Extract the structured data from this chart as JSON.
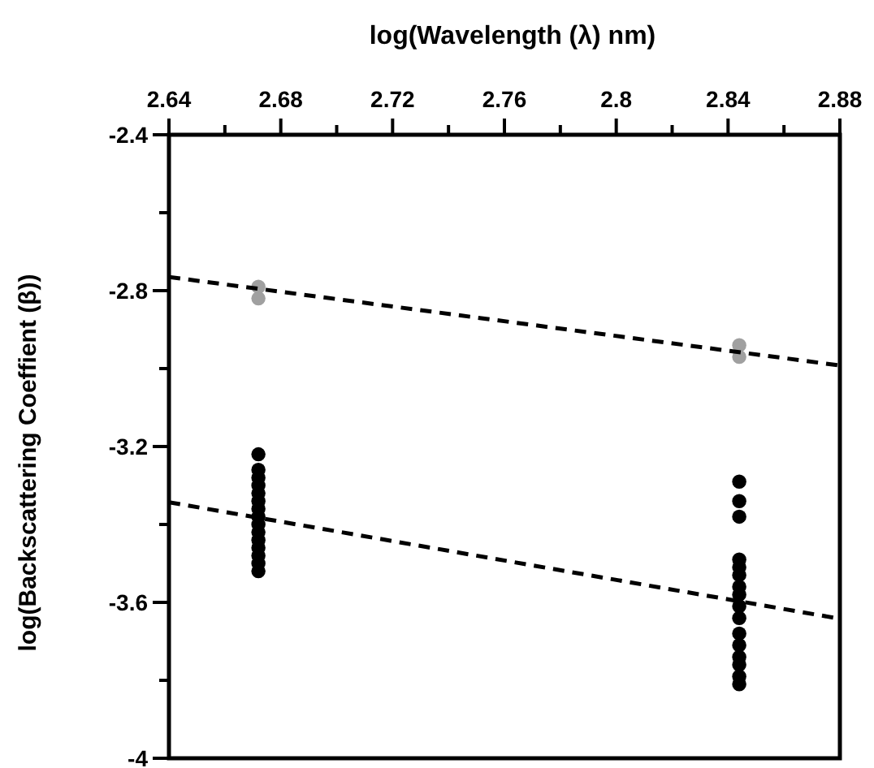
{
  "chart_data": {
    "type": "scatter",
    "xlabel": "log(Wavelength (λ) nm)",
    "ylabel": "log(Backscattering Coeffient (β))",
    "xlim": [
      2.64,
      2.88
    ],
    "xticks": [
      2.64,
      {
        "value": 2.66,
        "label": null
      },
      2.68,
      {
        "value": 2.7,
        "label": null
      },
      2.72,
      {
        "value": 2.74,
        "label": null
      },
      2.76,
      {
        "value": 2.78,
        "label": null
      },
      {
        "value": 2.8,
        "label": "2.8"
      },
      {
        "value": 2.82,
        "label": null
      },
      2.84,
      {
        "value": 2.86,
        "label": null
      },
      2.88
    ],
    "ylim": [
      -4,
      -2.4
    ],
    "yticks": [
      {
        "value": -4,
        "label": "-4"
      },
      {
        "value": -3.8,
        "label": null
      },
      -3.6,
      {
        "value": -3.4,
        "label": null
      },
      -3.2,
      {
        "value": -3,
        "label": null
      },
      -2.8,
      {
        "value": -2.6,
        "label": null
      },
      -2.4
    ],
    "marker": "circle",
    "grid": false,
    "series": [
      {
        "color": "#a0a0a0",
        "x": [
          2.672,
          2.672,
          2.844,
          2.844
        ],
        "values": [
          -2.79,
          -2.82,
          -2.94,
          -2.97
        ]
      },
      {
        "color": "#000000",
        "x": [
          2.672,
          2.672,
          2.672,
          2.672,
          2.672,
          2.672,
          2.672,
          2.672,
          2.672,
          2.672,
          2.672,
          2.672,
          2.672,
          2.672,
          2.672,
          2.844,
          2.844,
          2.844,
          2.844,
          2.844,
          2.844,
          2.844,
          2.844,
          2.844,
          2.844,
          2.844,
          2.844,
          2.844,
          2.844,
          2.844,
          2.844
        ],
        "values": [
          -3.22,
          -3.26,
          -3.28,
          -3.3,
          -3.32,
          -3.34,
          -3.36,
          -3.38,
          -3.4,
          -3.42,
          -3.44,
          -3.46,
          -3.48,
          -3.5,
          -3.52,
          -3.29,
          -3.34,
          -3.38,
          -3.49,
          -3.51,
          -3.53,
          -3.56,
          -3.58,
          -3.61,
          -3.64,
          -3.68,
          -3.71,
          -3.74,
          -3.76,
          -3.79,
          -3.81
        ]
      },
      {
        "type": "line",
        "color": "#000000",
        "line_style": "dashed",
        "marker": "none",
        "x": [
          2.64,
          2.88
        ],
        "values": [
          -2.765,
          -2.992
        ]
      },
      {
        "type": "line",
        "color": "#000000",
        "line_style": "dashed",
        "marker": "none",
        "x": [
          2.64,
          2.88
        ],
        "values": [
          -3.343,
          -3.642
        ]
      }
    ]
  }
}
